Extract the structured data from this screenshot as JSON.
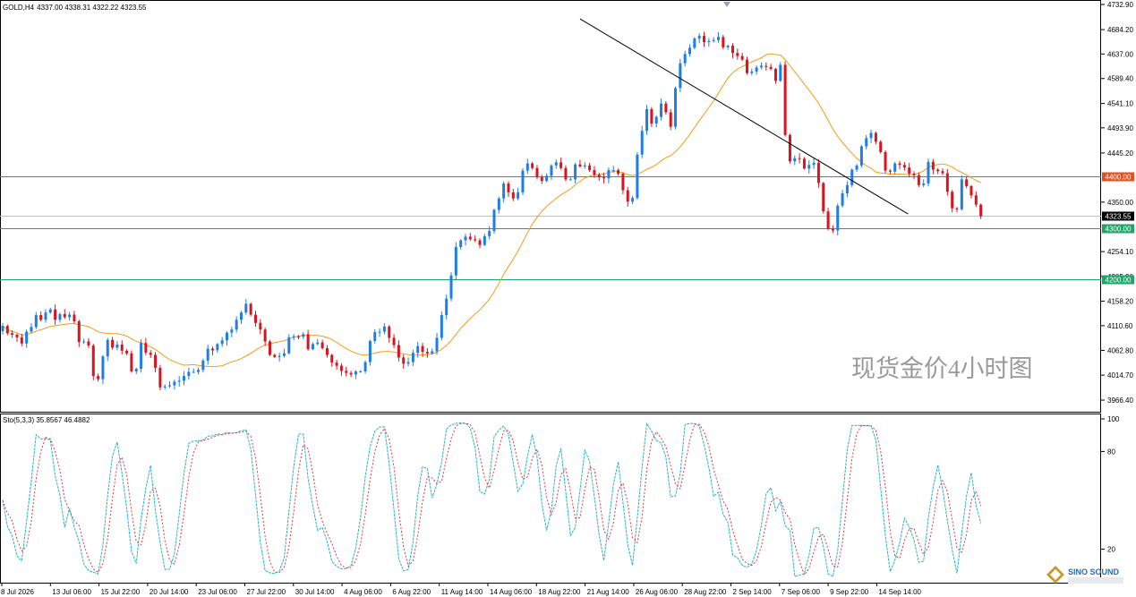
{
  "header": {
    "symbol": "GOLD,H4",
    "ohlc": "4337.00 4338.31 4322.22 4323.55"
  },
  "watermark": "现货金价4小时图",
  "indicator_label": "Sto(5,3,3) 35.8567 46.4882",
  "logo_text": "SINO SOUND",
  "colors": {
    "bull": "#1e7ee6",
    "bear": "#d9141e",
    "ma": "#f39c12",
    "resistance": "#e2521d",
    "support": "#22a36a",
    "trendline": "#000000",
    "stoch_main": "#2ab3c7",
    "stoch_signal": "#e03a3a"
  },
  "chart_data": [
    {
      "type": "candlestick",
      "symbol": "GOLD",
      "timeframe": "H4",
      "last_price": "4323.55",
      "ylim": [
        3940,
        4740
      ],
      "y_ticks": [
        "4732.90",
        "4684.20",
        "4637.00",
        "4589.40",
        "4541.10",
        "4493.90",
        "4445.20",
        "4350.00",
        "4254.10",
        "4205.90",
        "4158.20",
        "4110.60",
        "4062.80",
        "4014.70",
        "3966.40"
      ],
      "x_ticks": [
        "8 Jul 2026",
        "13 Jul 06:00",
        "15 Jul 22:00",
        "20 Jul 14:00",
        "23 Jul 06:00",
        "27 Jul 22:00",
        "30 Jul 14:00",
        "4 Aug 06:00",
        "6 Aug 22:00",
        "11 Aug 14:00",
        "14 Aug 06:00",
        "18 Aug 22:00",
        "21 Aug 14:00",
        "26 Aug 06:00",
        "28 Aug 22:00",
        "2 Sep 14:00",
        "7 Sep 06:00",
        "9 Sep 22:00",
        "14 Sep 14:00"
      ],
      "horizontal_levels": [
        {
          "label": "4400.00",
          "value": 4400,
          "kind": "resistance"
        },
        {
          "label": "4300.00",
          "value": 4300,
          "kind": "support"
        },
        {
          "label": "4200.00",
          "value": 4200,
          "kind": "support"
        }
      ],
      "trendline": {
        "from": {
          "index": 121,
          "price": 4705
        },
        "to": {
          "index": 186,
          "price": 4327
        }
      },
      "closes": [
        4110,
        4096,
        4093,
        4088,
        4076,
        4099,
        4108,
        4131,
        4122,
        4136,
        4142,
        4122,
        4133,
        4127,
        4132,
        4119,
        4079,
        4080,
        4072,
        4013,
        4007,
        4051,
        4083,
        4068,
        4074,
        4062,
        4057,
        4022,
        4027,
        4077,
        4058,
        4054,
        4029,
        3991,
        3993,
        3995,
        4002,
        4004,
        4013,
        4021,
        4021,
        4025,
        4043,
        4066,
        4063,
        4075,
        4082,
        4097,
        4103,
        4122,
        4136,
        4153,
        4132,
        4116,
        4103,
        4080,
        4054,
        4050,
        4052,
        4057,
        4088,
        4090,
        4089,
        4094,
        4065,
        4075,
        4078,
        4067,
        4054,
        4039,
        4033,
        4023,
        4019,
        4016,
        4022,
        4022,
        4040,
        4081,
        4098,
        4099,
        4109,
        4087,
        4073,
        4049,
        4037,
        4040,
        4058,
        4071,
        4060,
        4057,
        4061,
        4087,
        4131,
        4163,
        4208,
        4263,
        4276,
        4283,
        4278,
        4276,
        4267,
        4284,
        4294,
        4335,
        4357,
        4386,
        4369,
        4357,
        4369,
        4411,
        4425,
        4416,
        4398,
        4391,
        4401,
        4421,
        4427,
        4416,
        4394,
        4394,
        4423,
        4419,
        4421,
        4412,
        4403,
        4398,
        4396,
        4412,
        4412,
        4405,
        4373,
        4351,
        4358,
        4442,
        4488,
        4530,
        4502,
        4515,
        4541,
        4524,
        4496,
        4571,
        4619,
        4637,
        4649,
        4667,
        4672,
        4660,
        4662,
        4664,
        4670,
        4650,
        4653,
        4639,
        4633,
        4626,
        4600,
        4603,
        4611,
        4614,
        4612,
        4608,
        4585,
        4616,
        4480,
        4429,
        4435,
        4434,
        4415,
        4422,
        4426,
        4387,
        4332,
        4298,
        4295,
        4343,
        4367,
        4383,
        4413,
        4421,
        4458,
        4474,
        4484,
        4467,
        4447,
        4411,
        4409,
        4425,
        4422,
        4417,
        4405,
        4402,
        4383,
        4386,
        4428,
        4413,
        4410,
        4406,
        4370,
        4338,
        4336,
        4394,
        4381,
        4363,
        4345,
        4323
      ],
      "ma_period": 20,
      "ma_color": "orange"
    },
    {
      "type": "line",
      "title": "Sto(5,3,3)",
      "main_value": 35.8567,
      "signal_value": 46.4882,
      "ylim": [
        0,
        100
      ],
      "y_ticks": [
        "100",
        "80",
        "20"
      ]
    }
  ]
}
